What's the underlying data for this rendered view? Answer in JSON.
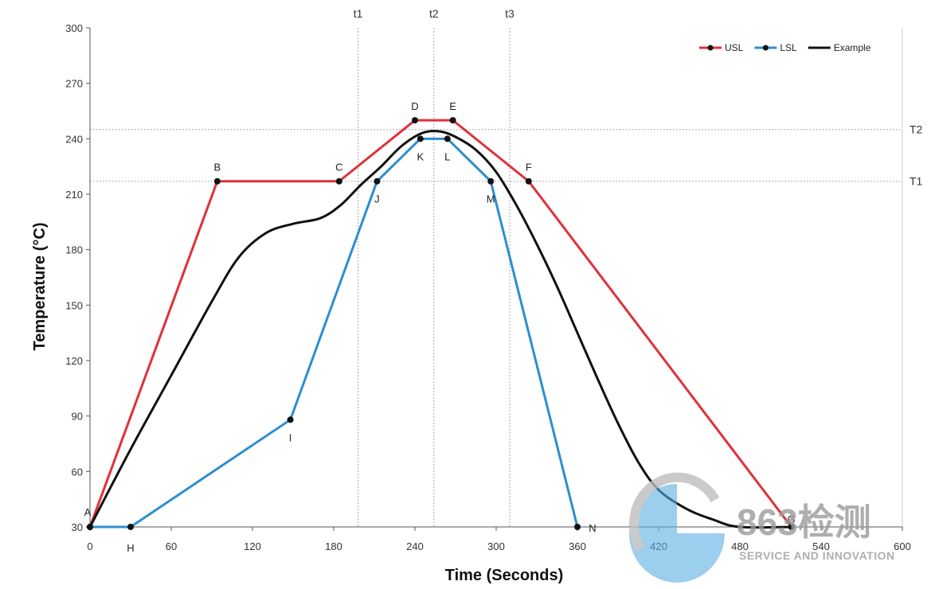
{
  "chart_data": {
    "type": "line",
    "xlabel": "Time (Seconds)",
    "ylabel": "Temperature (°C)",
    "xlim": [
      0,
      600
    ],
    "ylim": [
      30,
      300
    ],
    "x_ticks": [
      0,
      60,
      120,
      180,
      240,
      300,
      360,
      420,
      480,
      540,
      600
    ],
    "y_ticks": [
      30,
      60,
      90,
      120,
      150,
      180,
      210,
      240,
      270,
      300
    ],
    "grid": false,
    "legend_position": "top-right",
    "vertical_reference_lines": [
      {
        "label": "t1",
        "x": 198
      },
      {
        "label": "t2",
        "x": 254
      },
      {
        "label": "t3",
        "x": 310
      }
    ],
    "horizontal_reference_lines": [
      {
        "label": "T2",
        "y": 245
      },
      {
        "label": "T1",
        "y": 217
      }
    ],
    "series": [
      {
        "name": "USL",
        "color": "#e0303a",
        "points": [
          {
            "label": "A",
            "x": 0,
            "y": 30
          },
          {
            "label": "B",
            "x": 94,
            "y": 217
          },
          {
            "label": "C",
            "x": 184,
            "y": 217
          },
          {
            "label": "D",
            "x": 240,
            "y": 250
          },
          {
            "label": "E",
            "x": 268,
            "y": 250
          },
          {
            "label": "F",
            "x": 324,
            "y": 217
          },
          {
            "label": "G",
            "x": 518,
            "y": 30
          }
        ]
      },
      {
        "name": "LSL",
        "color": "#2b8fcf",
        "points": [
          {
            "label": "",
            "x": 0,
            "y": 30
          },
          {
            "label": "H",
            "x": 30,
            "y": 30
          },
          {
            "label": "I",
            "x": 148,
            "y": 88
          },
          {
            "label": "J",
            "x": 212,
            "y": 217
          },
          {
            "label": "K",
            "x": 244,
            "y": 240
          },
          {
            "label": "L",
            "x": 264,
            "y": 240
          },
          {
            "label": "M",
            "x": 296,
            "y": 217
          },
          {
            "label": "N",
            "x": 360,
            "y": 30
          }
        ]
      },
      {
        "name": "Example",
        "color": "#111111",
        "points": [
          {
            "x": 0,
            "y": 30
          },
          {
            "x": 30,
            "y": 72
          },
          {
            "x": 60,
            "y": 112
          },
          {
            "x": 90,
            "y": 152
          },
          {
            "x": 110,
            "y": 176
          },
          {
            "x": 130,
            "y": 189
          },
          {
            "x": 150,
            "y": 194
          },
          {
            "x": 170,
            "y": 197
          },
          {
            "x": 185,
            "y": 204
          },
          {
            "x": 200,
            "y": 215
          },
          {
            "x": 215,
            "y": 225
          },
          {
            "x": 230,
            "y": 236
          },
          {
            "x": 245,
            "y": 243
          },
          {
            "x": 258,
            "y": 244
          },
          {
            "x": 270,
            "y": 241
          },
          {
            "x": 285,
            "y": 234
          },
          {
            "x": 300,
            "y": 222
          },
          {
            "x": 315,
            "y": 204
          },
          {
            "x": 330,
            "y": 183
          },
          {
            "x": 345,
            "y": 160
          },
          {
            "x": 360,
            "y": 135
          },
          {
            "x": 375,
            "y": 110
          },
          {
            "x": 390,
            "y": 86
          },
          {
            "x": 405,
            "y": 65
          },
          {
            "x": 420,
            "y": 50
          },
          {
            "x": 440,
            "y": 40
          },
          {
            "x": 460,
            "y": 34
          },
          {
            "x": 480,
            "y": 30
          },
          {
            "x": 520,
            "y": 30
          }
        ]
      }
    ]
  },
  "watermark": {
    "brand": "863检测",
    "tagline": "SERVICE AND INNOVATION"
  }
}
